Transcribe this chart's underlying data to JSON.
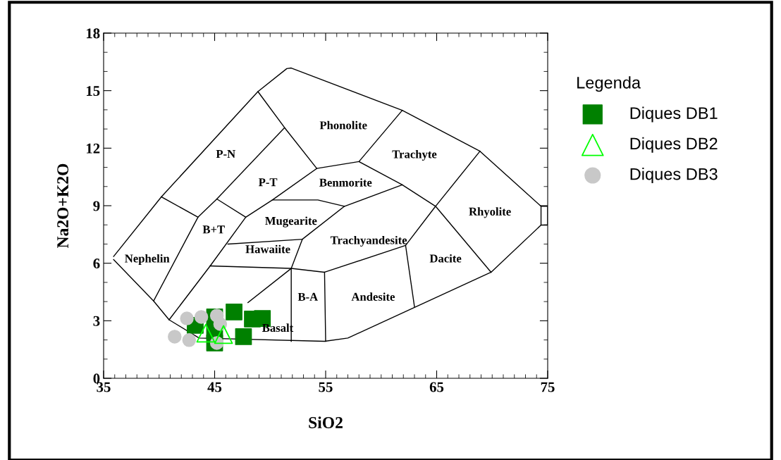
{
  "chart_data": {
    "type": "scatter",
    "xlabel": "SiO2",
    "ylabel": "Na2O+K2O",
    "legend_title": "Legenda",
    "legend": "right",
    "xlim": [
      35,
      75
    ],
    "xticks": [
      35,
      45,
      55,
      65,
      75
    ],
    "ylim": [
      0,
      18
    ],
    "yticks": [
      0,
      3,
      6,
      9,
      12,
      15,
      18
    ],
    "grid": false,
    "series": [
      {
        "type": "line",
        "color": "#000000",
        "marker": "none",
        "x": [
          35.9,
          39.5,
          40.9,
          43.6,
          54.9,
          57.0,
          69.9,
          74.4,
          74.4,
          68.9,
          61.9,
          51.9,
          51.5,
          48.9,
          40.2,
          35.9
        ],
        "values": [
          6.19,
          4.03,
          3.05,
          2.1,
          1.93,
          2.1,
          5.53,
          7.99,
          8.97,
          11.84,
          13.97,
          16.18,
          16.15,
          14.95,
          9.46,
          6.35
        ]
      },
      {
        "type": "line",
        "color": "#000000",
        "marker": "none",
        "x": [
          40.2,
          43.5
        ],
        "values": [
          9.46,
          8.4
        ]
      },
      {
        "type": "line",
        "color": "#000000",
        "marker": "none",
        "x": [
          39.5,
          43.5,
          45.2,
          47.8
        ],
        "values": [
          4.03,
          8.4,
          9.35,
          8.4
        ]
      },
      {
        "type": "line",
        "color": "#000000",
        "marker": "none",
        "x": [
          48.9,
          51.3,
          54.2,
          58.0,
          61.9
        ],
        "values": [
          14.95,
          13.07,
          10.94,
          11.3,
          13.97
        ]
      },
      {
        "type": "line",
        "color": "#000000",
        "marker": "none",
        "x": [
          51.3,
          45.2
        ],
        "values": [
          13.07,
          9.35
        ]
      },
      {
        "type": "line",
        "color": "#000000",
        "marker": "none",
        "x": [
          54.2,
          50.2,
          47.8,
          44.6,
          40.9
        ],
        "values": [
          10.94,
          9.3,
          8.4,
          5.86,
          3.05
        ]
      },
      {
        "type": "line",
        "color": "#000000",
        "marker": "none",
        "x": [
          50.2,
          54.3,
          56.7,
          61.9,
          64.9,
          68.9
        ],
        "values": [
          9.3,
          9.3,
          8.97,
          10.09,
          8.97,
          11.84
        ]
      },
      {
        "type": "line",
        "color": "#000000",
        "marker": "none",
        "x": [
          58.0,
          61.9
        ],
        "values": [
          11.3,
          10.09
        ]
      },
      {
        "type": "line",
        "color": "#000000",
        "marker": "none",
        "x": [
          56.7,
          52.9,
          51.9,
          51.9
        ],
        "values": [
          8.97,
          7.25,
          5.73,
          1.93
        ]
      },
      {
        "type": "line",
        "color": "#000000",
        "marker": "none",
        "x": [
          46.2,
          52.9
        ],
        "values": [
          7.0,
          7.25
        ]
      },
      {
        "type": "line",
        "color": "#000000",
        "marker": "none",
        "x": [
          44.6,
          51.9,
          54.9,
          62.2,
          64.9
        ],
        "values": [
          5.86,
          5.73,
          5.53,
          6.93,
          8.97
        ]
      },
      {
        "type": "line",
        "color": "#000000",
        "marker": "none",
        "x": [
          62.2,
          63.0
        ],
        "values": [
          6.93,
          3.73
        ]
      },
      {
        "type": "line",
        "color": "#000000",
        "marker": "none",
        "x": [
          64.9,
          69.9
        ],
        "values": [
          8.97,
          5.53
        ]
      },
      {
        "type": "line",
        "color": "#000000",
        "marker": "none",
        "x": [
          54.9,
          55.0
        ],
        "values": [
          5.53,
          1.93
        ]
      },
      {
        "type": "line",
        "color": "#000000",
        "marker": "none",
        "x": [
          48.0,
          51.9
        ],
        "values": [
          3.95,
          5.73
        ]
      },
      {
        "type": "line",
        "color": "#000000",
        "marker": "none",
        "x": [
          74.4,
          75,
          75,
          74.4
        ],
        "values": [
          8.97,
          8.97,
          7.99,
          7.99
        ]
      },
      {
        "name": "Diques DB1",
        "color": "#008000",
        "marker": "square",
        "x": [
          43.25,
          46.75,
          48.4,
          49.3,
          47.6,
          45.0,
          45.0,
          45.0
        ],
        "values": [
          2.76,
          3.46,
          3.09,
          3.12,
          2.17,
          3.2,
          1.84,
          2.46
        ]
      },
      {
        "name": "Diques DB2",
        "color": "#00ff00",
        "marker": "triangle",
        "x": [
          44.2,
          45.8
        ],
        "values": [
          2.35,
          2.28
        ]
      },
      {
        "name": "Diques DB3",
        "color": "#c8c8c8",
        "marker": "circle",
        "x": [
          42.5,
          43.8,
          41.4,
          42.7,
          45.2,
          45.5,
          45.2
        ],
        "values": [
          3.12,
          3.2,
          2.17,
          1.99,
          3.27,
          2.83,
          1.84
        ]
      }
    ],
    "annotations": [
      "Phonolite",
      "P-N",
      "Trachyte",
      "P-T",
      "Benmorite",
      "Rhyolite",
      "Mugearite",
      "B+T",
      "Trachyandesite",
      "Hawaiite",
      "Nephelin",
      "Dacite",
      "B-A",
      "Andesite",
      "Basalt"
    ]
  }
}
